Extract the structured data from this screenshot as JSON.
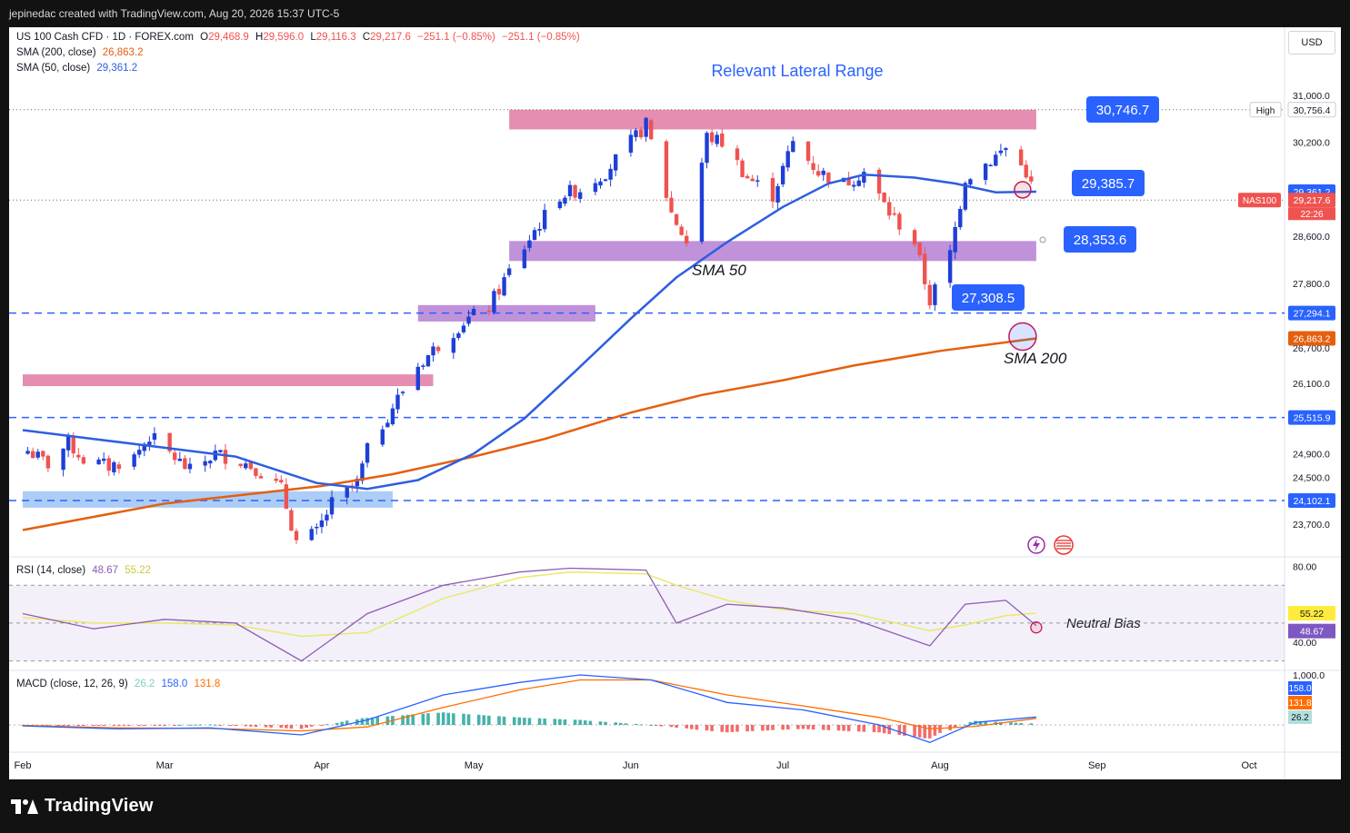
{
  "header": {
    "created_by": "jepinedac created with TradingView.com, Aug 20, 2026 15:37 UTC-5"
  },
  "footer": {
    "brand": "TradingView"
  },
  "currency_button": "USD",
  "legend": {
    "symbol": "US 100 Cash CFD · 1D · FOREX.com",
    "o_label": "O",
    "o": "29,468.9",
    "h_label": "H",
    "h": "29,596.0",
    "l_label": "L",
    "l": "29,116.3",
    "c_label": "C",
    "c": "29,217.6",
    "chg": "−251.1 (−0.85%)",
    "chg2": "−251.1 (−0.85%)",
    "sma200_label": "SMA (200, close)",
    "sma200_value": "26,863.2",
    "sma50_label": "SMA (50, close)",
    "sma50_value": "29,361.2",
    "rsi_label": "RSI (14, close)",
    "rsi_value": "48.67",
    "rsi_ma_value": "55.22",
    "macd_label": "MACD (close, 12, 26, 9)",
    "macd_hist": "26.2",
    "macd_line": "158.0",
    "macd_signal": "131.8"
  },
  "colors": {
    "sma50": "#2e5ee0",
    "sma200": "#e4600f",
    "up": "#1e3fd6",
    "down": "#ef5350",
    "zone_pink": "#e07aa4",
    "zone_purple": "#b57fd4",
    "zone_blue": "#9ec4f4",
    "rsi_line": "#8e5bb5",
    "rsi_ma": "#e9e96a",
    "macd_line": "#2962ff",
    "signal_line": "#ff6d00",
    "hist_up": "#26a69a",
    "hist_down": "#ef5350",
    "label_blue": "#2962ff"
  },
  "chart_data": {
    "type": "candlestick",
    "title": "Relevant Lateral Range",
    "xlabel": "",
    "ylabel": "",
    "x_ticks": [
      "Feb",
      "Mar",
      "Apr",
      "May",
      "Jun",
      "Jul",
      "Aug",
      "Sep",
      "Oct"
    ],
    "y_ticks": [
      "31,000.0",
      "30,200.0",
      "28,600.0",
      "27,800.0",
      "26,700.0",
      "26,100.0",
      "24,900.0",
      "24,500.0",
      "23,700.0"
    ],
    "ylim": [
      23300,
      31200
    ],
    "price_tags": [
      {
        "label": "High",
        "value": "30,756.4"
      },
      {
        "label": "",
        "value": "29,361.2"
      },
      {
        "label": "NAS100",
        "value": "29,217.6",
        "countdown": "22:26"
      },
      {
        "label": "",
        "value": "27,294.1"
      },
      {
        "label": "",
        "value": "26,863.2"
      },
      {
        "label": "",
        "value": "25,515.9"
      },
      {
        "label": "",
        "value": "24,102.1"
      }
    ],
    "callouts": [
      "30,746.7",
      "29,385.7",
      "28,353.6",
      "27,308.5"
    ],
    "annotations": [
      "SMA 50",
      "SMA 200",
      "Neutral Bias"
    ],
    "zones": [
      {
        "from": 30420,
        "to": 30756,
        "x_start": "2026-05-08",
        "x_end": "2026-08-20",
        "color": "pink"
      },
      {
        "from": 28180,
        "to": 28520,
        "x_start": "2026-05-08",
        "x_end": "2026-08-20",
        "color": "purple"
      },
      {
        "from": 27150,
        "to": 27430,
        "x_start": "2026-04-20",
        "x_end": "2026-05-25",
        "color": "purple"
      },
      {
        "from": 26050,
        "to": 26250,
        "x_start": "2026-02-01",
        "x_end": "2026-04-23",
        "color": "pink"
      },
      {
        "from": 23980,
        "to": 24260,
        "x_start": "2026-02-01",
        "x_end": "2026-04-15",
        "color": "blue"
      }
    ],
    "dashed_levels": [
      27294.1,
      25515.9,
      24102.1
    ],
    "dotted_levels": [
      30756.4,
      29217.6
    ],
    "ohlc_points": [
      {
        "date": "2026-02-02",
        "close": 24950
      },
      {
        "date": "2026-02-06",
        "close": 24720
      },
      {
        "date": "2026-02-10",
        "close": 25080
      },
      {
        "date": "2026-02-13",
        "close": 24800
      },
      {
        "date": "2026-02-18",
        "close": 24680
      },
      {
        "date": "2026-02-23",
        "close": 24850
      },
      {
        "date": "2026-02-26",
        "close": 25200
      },
      {
        "date": "2026-03-03",
        "close": 24830
      },
      {
        "date": "2026-03-06",
        "close": 24600
      },
      {
        "date": "2026-03-11",
        "close": 24900
      },
      {
        "date": "2026-03-16",
        "close": 24780
      },
      {
        "date": "2026-03-19",
        "close": 24650
      },
      {
        "date": "2026-03-24",
        "close": 24300
      },
      {
        "date": "2026-03-27",
        "close": 23400
      },
      {
        "date": "2026-03-31",
        "close": 23550
      },
      {
        "date": "2026-04-03",
        "close": 24050
      },
      {
        "date": "2026-04-08",
        "close": 24400
      },
      {
        "date": "2026-04-10",
        "close": 24950
      },
      {
        "date": "2026-04-15",
        "close": 25700
      },
      {
        "date": "2026-04-20",
        "close": 26400
      },
      {
        "date": "2026-04-24",
        "close": 26750
      },
      {
        "date": "2026-04-29",
        "close": 27150
      },
      {
        "date": "2026-05-04",
        "close": 27400
      },
      {
        "date": "2026-05-08",
        "close": 28000
      },
      {
        "date": "2026-05-13",
        "close": 28700
      },
      {
        "date": "2026-05-18",
        "close": 29300
      },
      {
        "date": "2026-05-22",
        "close": 29400
      },
      {
        "date": "2026-05-27",
        "close": 29700
      },
      {
        "date": "2026-06-01",
        "close": 30200
      },
      {
        "date": "2026-06-04",
        "close": 30500
      },
      {
        "date": "2026-06-09",
        "close": 29000
      },
      {
        "date": "2026-06-12",
        "close": 28500
      },
      {
        "date": "2026-06-16",
        "close": 30300
      },
      {
        "date": "2026-06-19",
        "close": 30200
      },
      {
        "date": "2026-06-24",
        "close": 29600
      },
      {
        "date": "2026-06-29",
        "close": 29300
      },
      {
        "date": "2026-07-03",
        "close": 30200
      },
      {
        "date": "2026-07-08",
        "close": 29700
      },
      {
        "date": "2026-07-13",
        "close": 29500
      },
      {
        "date": "2026-07-17",
        "close": 29700
      },
      {
        "date": "2026-07-22",
        "close": 29000
      },
      {
        "date": "2026-07-27",
        "close": 28500
      },
      {
        "date": "2026-07-30",
        "close": 27500
      },
      {
        "date": "2026-08-03",
        "close": 28300
      },
      {
        "date": "2026-08-06",
        "close": 29600
      },
      {
        "date": "2026-08-11",
        "close": 29900
      },
      {
        "date": "2026-08-14",
        "close": 30100
      },
      {
        "date": "2026-08-18",
        "close": 29700
      },
      {
        "date": "2026-08-20",
        "close": 29217.6
      }
    ],
    "sma50": [
      {
        "date": "2026-02-01",
        "value": 25300
      },
      {
        "date": "2026-02-15",
        "value": 25150
      },
      {
        "date": "2026-03-01",
        "value": 25000
      },
      {
        "date": "2026-03-15",
        "value": 24850
      },
      {
        "date": "2026-03-31",
        "value": 24400
      },
      {
        "date": "2026-04-10",
        "value": 24300
      },
      {
        "date": "2026-04-20",
        "value": 24450
      },
      {
        "date": "2026-05-01",
        "value": 24900
      },
      {
        "date": "2026-05-11",
        "value": 25500
      },
      {
        "date": "2026-05-21",
        "value": 26300
      },
      {
        "date": "2026-06-01",
        "value": 27200
      },
      {
        "date": "2026-06-10",
        "value": 27900
      },
      {
        "date": "2026-06-20",
        "value": 28500
      },
      {
        "date": "2026-07-01",
        "value": 29100
      },
      {
        "date": "2026-07-10",
        "value": 29500
      },
      {
        "date": "2026-07-17",
        "value": 29650
      },
      {
        "date": "2026-07-27",
        "value": 29600
      },
      {
        "date": "2026-08-04",
        "value": 29500
      },
      {
        "date": "2026-08-12",
        "value": 29350
      },
      {
        "date": "2026-08-20",
        "value": 29361.2
      }
    ],
    "sma200": [
      {
        "date": "2026-02-01",
        "value": 23600
      },
      {
        "date": "2026-03-01",
        "value": 24050
      },
      {
        "date": "2026-04-01",
        "value": 24350
      },
      {
        "date": "2026-04-15",
        "value": 24550
      },
      {
        "date": "2026-05-01",
        "value": 24850
      },
      {
        "date": "2026-05-15",
        "value": 25150
      },
      {
        "date": "2026-06-01",
        "value": 25600
      },
      {
        "date": "2026-06-15",
        "value": 25900
      },
      {
        "date": "2026-07-01",
        "value": 26150
      },
      {
        "date": "2026-07-15",
        "value": 26400
      },
      {
        "date": "2026-08-01",
        "value": 26650
      },
      {
        "date": "2026-08-20",
        "value": 26863.2
      }
    ],
    "rsi": {
      "ylim": [
        25,
        85
      ],
      "ticks": [
        "80.00",
        "40.00"
      ],
      "upper": 70,
      "lower": 30,
      "mid": 50,
      "value": 48.67,
      "ma_value": 55.22,
      "points": [
        {
          "date": "2026-02-01",
          "rsi": 55,
          "ma": 53
        },
        {
          "date": "2026-02-15",
          "rsi": 47,
          "ma": 50
        },
        {
          "date": "2026-03-01",
          "rsi": 52,
          "ma": 50
        },
        {
          "date": "2026-03-15",
          "rsi": 50,
          "ma": 49
        },
        {
          "date": "2026-03-28",
          "rsi": 30,
          "ma": 43
        },
        {
          "date": "2026-04-10",
          "rsi": 55,
          "ma": 45
        },
        {
          "date": "2026-04-25",
          "rsi": 70,
          "ma": 63
        },
        {
          "date": "2026-05-10",
          "rsi": 77,
          "ma": 74
        },
        {
          "date": "2026-05-20",
          "rsi": 79,
          "ma": 77
        },
        {
          "date": "2026-06-04",
          "rsi": 78,
          "ma": 76
        },
        {
          "date": "2026-06-10",
          "rsi": 50,
          "ma": 70
        },
        {
          "date": "2026-06-20",
          "rsi": 60,
          "ma": 62
        },
        {
          "date": "2026-07-01",
          "rsi": 58,
          "ma": 57
        },
        {
          "date": "2026-07-15",
          "rsi": 52,
          "ma": 55
        },
        {
          "date": "2026-07-30",
          "rsi": 38,
          "ma": 46
        },
        {
          "date": "2026-08-06",
          "rsi": 60,
          "ma": 49
        },
        {
          "date": "2026-08-14",
          "rsi": 62,
          "ma": 54
        },
        {
          "date": "2026-08-20",
          "rsi": 48.67,
          "ma": 55.22
        }
      ]
    },
    "macd": {
      "ticks": [
        "1,000.0"
      ],
      "macd_value": 158.0,
      "signal_value": 131.8,
      "hist_value": 26.2,
      "points": [
        {
          "date": "2026-02-01",
          "macd": -20,
          "signal": -10
        },
        {
          "date": "2026-02-20",
          "macd": -80,
          "signal": -60
        },
        {
          "date": "2026-03-10",
          "macd": -60,
          "signal": -70
        },
        {
          "date": "2026-03-28",
          "macd": -200,
          "signal": -120
        },
        {
          "date": "2026-04-10",
          "macd": 100,
          "signal": -40
        },
        {
          "date": "2026-04-25",
          "macd": 600,
          "signal": 350
        },
        {
          "date": "2026-05-10",
          "macd": 850,
          "signal": 700
        },
        {
          "date": "2026-05-22",
          "macd": 1000,
          "signal": 900
        },
        {
          "date": "2026-06-05",
          "macd": 900,
          "signal": 900
        },
        {
          "date": "2026-06-20",
          "macd": 450,
          "signal": 600
        },
        {
          "date": "2026-07-05",
          "macd": 300,
          "signal": 380
        },
        {
          "date": "2026-07-20",
          "macd": 0,
          "signal": 150
        },
        {
          "date": "2026-07-30",
          "macd": -350,
          "signal": -80
        },
        {
          "date": "2026-08-08",
          "macd": 50,
          "signal": -30
        },
        {
          "date": "2026-08-20",
          "macd": 158,
          "signal": 131.8
        }
      ]
    }
  }
}
